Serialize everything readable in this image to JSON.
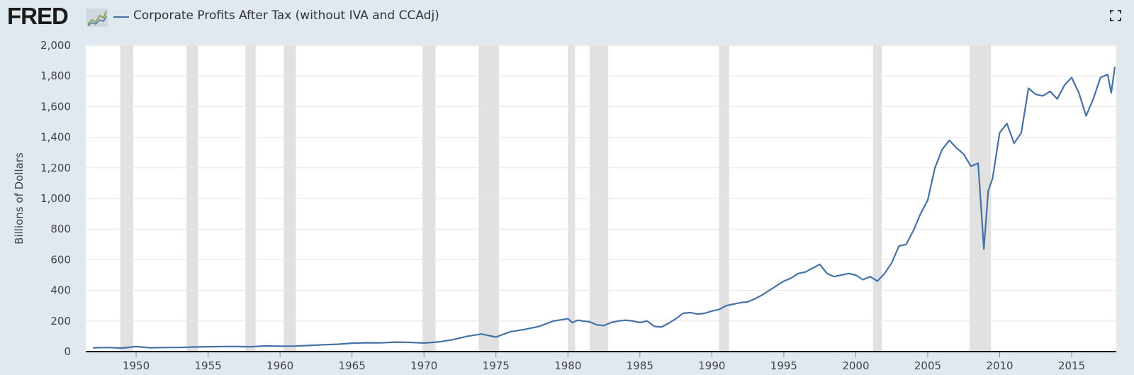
{
  "header": {
    "logo_text": "FRED",
    "series_label": "Corporate Profits After Tax (without IVA and CCAdj)",
    "line_color": "#4572a7"
  },
  "icons": {
    "logo_chart": "mini-line-chart-icon",
    "fullscreen": "fullscreen-icon"
  },
  "chart_data": {
    "type": "line",
    "title": "",
    "xlabel": "",
    "ylabel": "Billions of Dollars",
    "xlim": [
      1946.5,
      2018.1
    ],
    "ylim": [
      0,
      2000
    ],
    "yticks": [
      0,
      200,
      400,
      600,
      800,
      1000,
      1200,
      1400,
      1600,
      1800,
      2000
    ],
    "ytick_labels": [
      "0",
      "200",
      "400",
      "600",
      "800",
      "1,000",
      "1,200",
      "1,400",
      "1,600",
      "1,800",
      "2,000"
    ],
    "xticks": [
      1950,
      1955,
      1960,
      1965,
      1970,
      1975,
      1980,
      1985,
      1990,
      1995,
      2000,
      2005,
      2010,
      2015
    ],
    "xtick_labels": [
      "1950",
      "1955",
      "1960",
      "1965",
      "1970",
      "1975",
      "1980",
      "1985",
      "1990",
      "1995",
      "2000",
      "2005",
      "2010",
      "2015"
    ],
    "grid": "horizontal",
    "recessions": [
      [
        1948.9,
        1949.8
      ],
      [
        1953.5,
        1954.3
      ],
      [
        1957.6,
        1958.3
      ],
      [
        1960.25,
        1961.1
      ],
      [
        1969.9,
        1970.8
      ],
      [
        1973.8,
        1975.2
      ],
      [
        1980.0,
        1980.5
      ],
      [
        1981.5,
        1982.8
      ],
      [
        1990.5,
        1991.2
      ],
      [
        2001.2,
        2001.8
      ],
      [
        2007.9,
        2009.4
      ]
    ],
    "series": [
      {
        "name": "Corporate Profits After Tax (without IVA and CCAdj)",
        "x": [
          1947.0,
          1948.0,
          1949.0,
          1950.0,
          1951.0,
          1952.0,
          1953.0,
          1954.0,
          1955.0,
          1956.0,
          1957.0,
          1958.0,
          1959.0,
          1960.0,
          1961.0,
          1962.0,
          1963.0,
          1964.0,
          1965.0,
          1966.0,
          1967.0,
          1968.0,
          1969.0,
          1970.0,
          1971.0,
          1972.0,
          1973.0,
          1974.0,
          1975.0,
          1976.0,
          1977.0,
          1978.0,
          1979.0,
          1980.0,
          1980.3,
          1980.7,
          1981.0,
          1981.5,
          1982.0,
          1982.5,
          1983.0,
          1983.5,
          1984.0,
          1984.5,
          1985.0,
          1985.5,
          1986.0,
          1986.5,
          1987.0,
          1987.5,
          1988.0,
          1988.5,
          1989.0,
          1989.5,
          1990.0,
          1990.5,
          1991.0,
          1991.5,
          1992.0,
          1992.5,
          1993.0,
          1993.5,
          1994.0,
          1994.5,
          1995.0,
          1995.5,
          1996.0,
          1996.5,
          1997.0,
          1997.5,
          1998.0,
          1998.5,
          1999.0,
          1999.5,
          2000.0,
          2000.5,
          2001.0,
          2001.5,
          2002.0,
          2002.5,
          2003.0,
          2003.5,
          2004.0,
          2004.5,
          2005.0,
          2005.5,
          2006.0,
          2006.5,
          2007.0,
          2007.5,
          2008.0,
          2008.5,
          2008.9,
          2009.2,
          2009.5,
          2010.0,
          2010.5,
          2011.0,
          2011.5,
          2012.0,
          2012.5,
          2013.0,
          2013.5,
          2014.0,
          2014.5,
          2015.0,
          2015.5,
          2016.0,
          2016.5,
          2017.0,
          2017.5,
          2017.75,
          2018.0
        ],
        "values": [
          25,
          27,
          23,
          33,
          25,
          27,
          27,
          30,
          32,
          33,
          33,
          32,
          37,
          35,
          36,
          40,
          45,
          48,
          55,
          58,
          57,
          62,
          60,
          56,
          63,
          78,
          100,
          115,
          95,
          130,
          145,
          165,
          200,
          215,
          190,
          205,
          200,
          195,
          175,
          170,
          190,
          200,
          205,
          200,
          190,
          200,
          165,
          160,
          185,
          215,
          250,
          255,
          245,
          250,
          265,
          275,
          300,
          310,
          320,
          325,
          345,
          370,
          400,
          430,
          460,
          480,
          510,
          520,
          545,
          570,
          510,
          490,
          500,
          510,
          500,
          470,
          490,
          460,
          510,
          580,
          690,
          700,
          790,
          900,
          990,
          1200,
          1320,
          1380,
          1330,
          1290,
          1210,
          1230,
          670,
          1050,
          1130,
          1430,
          1490,
          1360,
          1430,
          1720,
          1680,
          1670,
          1700,
          1650,
          1740,
          1790,
          1690,
          1540,
          1650,
          1790,
          1810,
          1690,
          1860
        ]
      }
    ]
  }
}
